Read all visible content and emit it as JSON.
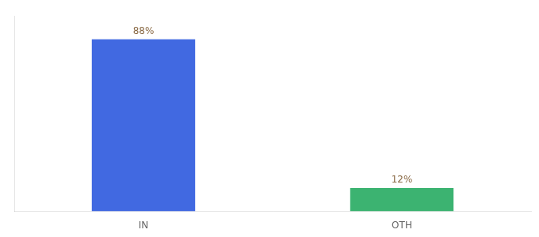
{
  "chart_data": {
    "type": "bar",
    "categories": [
      "IN",
      "OTH"
    ],
    "values": [
      88,
      12
    ],
    "value_labels": [
      "88%",
      "12%"
    ],
    "colors": [
      "#4169e1",
      "#3cb371"
    ],
    "ylim": [
      0,
      100
    ],
    "data_labels": true,
    "tick_labels": "x",
    "grid": false
  }
}
